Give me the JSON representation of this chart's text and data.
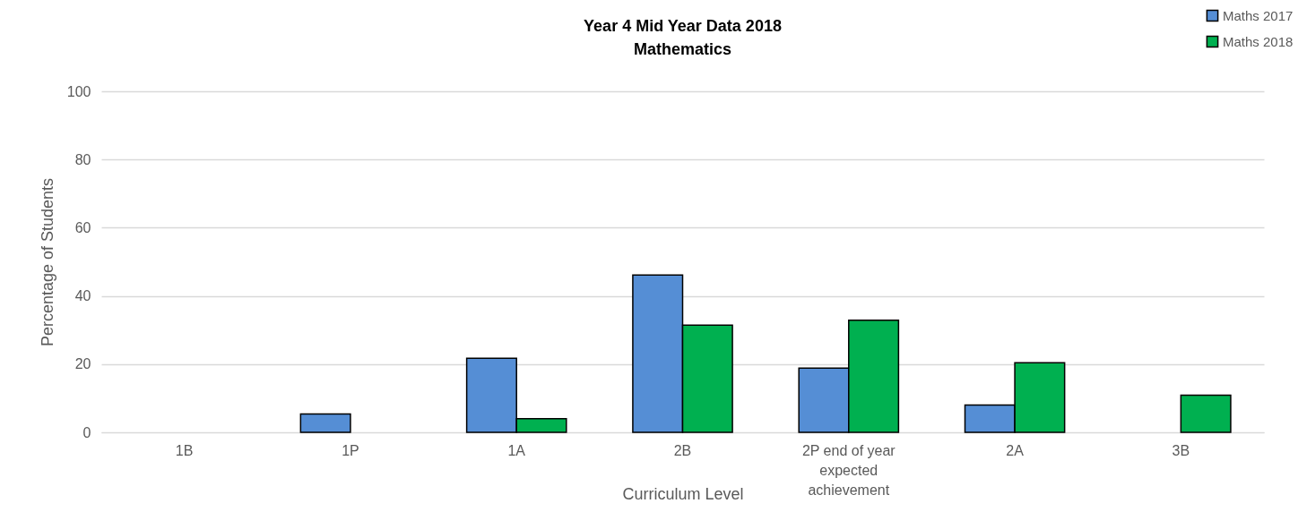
{
  "chart_data": {
    "type": "bar",
    "title": "Year 4 Mid Year Data 2018\nMathematics",
    "xlabel": "Curriculum Level",
    "ylabel": "Percentage of Students",
    "categories": [
      "1B",
      "1P",
      "1A",
      "2B",
      "2P end of year expected achievement",
      "2A",
      "3B"
    ],
    "series": [
      {
        "name": "Maths 2017",
        "color": "#558ed5",
        "values": [
          null,
          5.4,
          21.7,
          46.1,
          18.8,
          8.0,
          null
        ]
      },
      {
        "name": "Maths 2018",
        "color": "#00b050",
        "values": [
          null,
          null,
          4.0,
          31.4,
          32.9,
          20.4,
          10.9
        ]
      }
    ],
    "ylim": [
      0,
      100
    ],
    "yticks": [
      0,
      20,
      40,
      60,
      80,
      100
    ],
    "grid": "y",
    "legend": "top right"
  }
}
